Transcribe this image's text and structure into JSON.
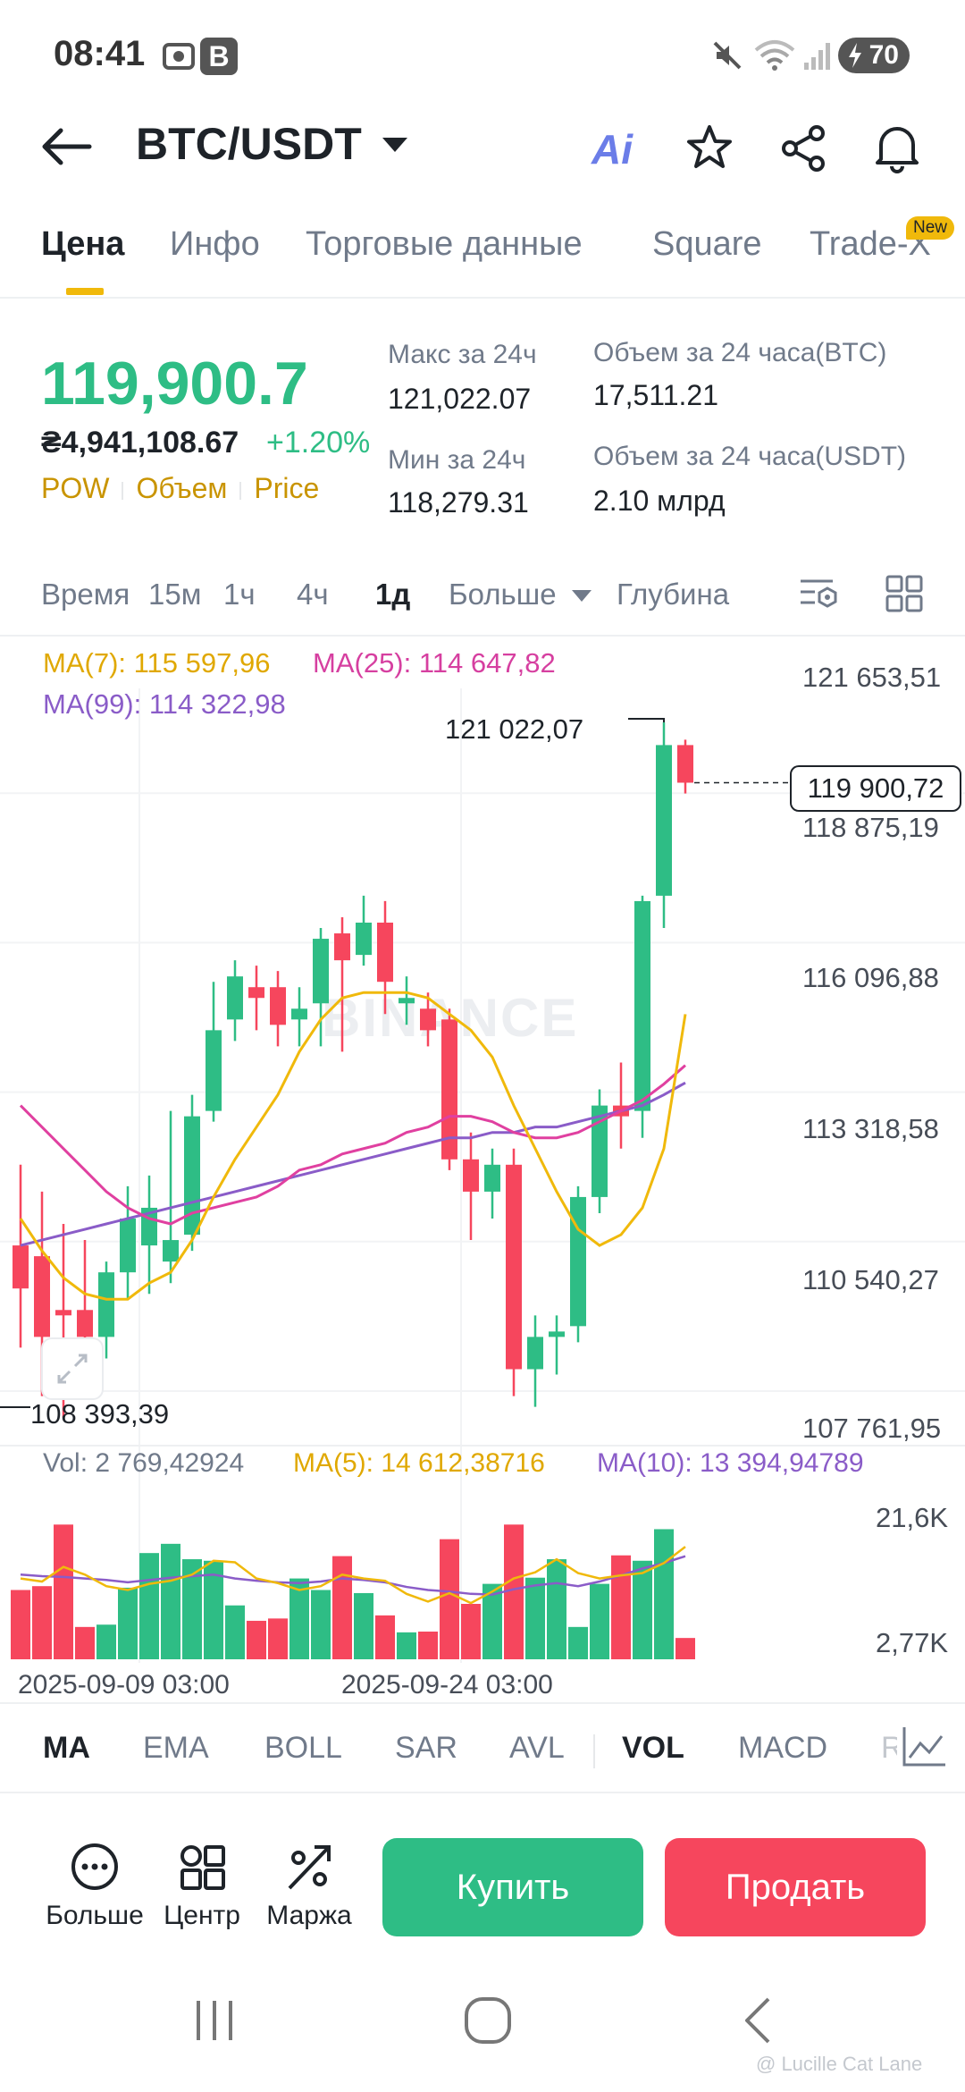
{
  "status_bar": {
    "time": "08:41",
    "badge": "B",
    "battery": "70"
  },
  "header": {
    "pair": "BTC/USDT",
    "ai_label": "Ai"
  },
  "tabs": [
    {
      "label": "Цена",
      "active": true
    },
    {
      "label": "Инфо"
    },
    {
      "label": "Торговые данные"
    },
    {
      "label": "Square"
    },
    {
      "label": "Trade-X",
      "badge": "New"
    }
  ],
  "price": {
    "last": "119,900.7",
    "local": "₴4,941,108.67",
    "change": "+1.20%",
    "tags": [
      "POW",
      "Объем",
      "Price"
    ]
  },
  "stats": {
    "high_label": "Макс за 24ч",
    "high": "121,022.07",
    "low_label": "Мин за 24ч",
    "low": "118,279.31",
    "vol_btc_label": "Объем за 24 часа(BTC)",
    "vol_btc": "17,511.21",
    "vol_usdt_label": "Объем за 24 часа(USDT)",
    "vol_usdt": "2.10 млрд"
  },
  "timeframes": {
    "time_label": "Время",
    "items": [
      "15м",
      "1ч",
      "4ч",
      "1д"
    ],
    "active": "1д",
    "more": "Больше",
    "depth": "Глубина"
  },
  "chart_legend": {
    "ma7": "MA(7): 115 597,96",
    "ma25": "MA(25): 114 647,82",
    "ma99": "MA(99): 114 322,98"
  },
  "price_axis": [
    "121 653,51",
    "118 875,19",
    "116 096,88",
    "113 318,58",
    "110 540,27",
    "107 761,95"
  ],
  "annotations": {
    "high": "121 022,07",
    "low": "108 393,39",
    "current": "119 900,72"
  },
  "watermark": "BINANCE",
  "volume_legend": {
    "vol": "Vol: 2 769,42924",
    "ma5": "MA(5): 14 612,38716",
    "ma10": "MA(10): 13 394,94789"
  },
  "volume_axis": [
    "21,6K",
    "2,77K"
  ],
  "date_axis": [
    "2025-09-09 03:00",
    "2025-09-24 03:00"
  ],
  "indicators": [
    "MA",
    "EMA",
    "BOLL",
    "SAR",
    "AVL",
    "VOL",
    "MACD",
    "R"
  ],
  "bottom_bar": {
    "more": "Больше",
    "center": "Центр",
    "margin": "Маржа",
    "buy": "Купить",
    "sell": "Продать"
  },
  "credit": "@ Lucille Cat Lane",
  "colors": {
    "up": "#2ebd85",
    "down": "#f6465d",
    "accent": "#f0b90b",
    "ma7": "#f0b90b",
    "ma25": "#e040a0",
    "ma99": "#8a5cc8"
  },
  "chart_data": {
    "type": "candlestick",
    "interval": "1д",
    "y_range": [
      107761.95,
      121653.51
    ],
    "candles": [
      {
        "o": 111300,
        "h": 112800,
        "l": 109400,
        "c": 110500
      },
      {
        "o": 111100,
        "h": 112300,
        "l": 108500,
        "c": 109600
      },
      {
        "o": 110100,
        "h": 111700,
        "l": 108100,
        "c": 110000
      },
      {
        "o": 110100,
        "h": 111400,
        "l": 108900,
        "c": 109600
      },
      {
        "o": 109600,
        "h": 111000,
        "l": 109200,
        "c": 110800
      },
      {
        "o": 110800,
        "h": 112400,
        "l": 110300,
        "c": 111800
      },
      {
        "o": 111300,
        "h": 112600,
        "l": 110400,
        "c": 112000
      },
      {
        "o": 111000,
        "h": 113800,
        "l": 110600,
        "c": 111400
      },
      {
        "o": 111500,
        "h": 114100,
        "l": 111200,
        "c": 113700
      },
      {
        "o": 113800,
        "h": 116200,
        "l": 113600,
        "c": 115300
      },
      {
        "o": 115500,
        "h": 116600,
        "l": 115100,
        "c": 116300
      },
      {
        "o": 116100,
        "h": 116500,
        "l": 115300,
        "c": 115900
      },
      {
        "o": 116100,
        "h": 116400,
        "l": 115000,
        "c": 115400
      },
      {
        "o": 115500,
        "h": 116100,
        "l": 115000,
        "c": 115700
      },
      {
        "o": 115800,
        "h": 117200,
        "l": 115000,
        "c": 117000
      },
      {
        "o": 117100,
        "h": 117400,
        "l": 114900,
        "c": 116600
      },
      {
        "o": 116700,
        "h": 117800,
        "l": 116500,
        "c": 117300
      },
      {
        "o": 117300,
        "h": 117700,
        "l": 115600,
        "c": 116200
      },
      {
        "o": 115800,
        "h": 116300,
        "l": 115400,
        "c": 115900
      },
      {
        "o": 115700,
        "h": 116000,
        "l": 115000,
        "c": 115300
      },
      {
        "o": 115500,
        "h": 115700,
        "l": 112700,
        "c": 112900
      },
      {
        "o": 112900,
        "h": 113400,
        "l": 111400,
        "c": 112300
      },
      {
        "o": 112300,
        "h": 113100,
        "l": 111800,
        "c": 112800
      },
      {
        "o": 112800,
        "h": 113100,
        "l": 108500,
        "c": 109000
      },
      {
        "o": 109000,
        "h": 110000,
        "l": 108300,
        "c": 109600
      },
      {
        "o": 109600,
        "h": 110000,
        "l": 108900,
        "c": 109700
      },
      {
        "o": 109800,
        "h": 112400,
        "l": 109500,
        "c": 112200
      },
      {
        "o": 112200,
        "h": 114200,
        "l": 111900,
        "c": 113900
      },
      {
        "o": 113900,
        "h": 114700,
        "l": 113100,
        "c": 113700
      },
      {
        "o": 113800,
        "h": 117800,
        "l": 113300,
        "c": 117700
      },
      {
        "o": 117800,
        "h": 121022.07,
        "l": 117200,
        "c": 120600
      },
      {
        "o": 120600,
        "h": 120700,
        "l": 119700,
        "c": 119900.72
      }
    ],
    "ma7": [
      111800,
      111200,
      110700,
      110400,
      110300,
      110300,
      110600,
      110800,
      111400,
      112200,
      112900,
      113500,
      114100,
      114900,
      115500,
      115900,
      116000,
      116000,
      116000,
      115900,
      115600,
      115300,
      114800,
      113900,
      113100,
      112300,
      111600,
      111300,
      111500,
      112000,
      113100,
      115597.96
    ],
    "ma25": [
      113900,
      113500,
      113100,
      112700,
      112300,
      112000,
      111800,
      111700,
      111900,
      112000,
      112100,
      112200,
      112400,
      112700,
      112800,
      113000,
      113100,
      113200,
      113400,
      113500,
      113700,
      113700,
      113600,
      113400,
      113300,
      113300,
      113400,
      113600,
      113800,
      114000,
      114300,
      114647.82
    ],
    "ma99": [
      111300,
      111400,
      111500,
      111600,
      111700,
      111800,
      111900,
      112000,
      112100,
      112200,
      112300,
      112400,
      112500,
      112600,
      112700,
      112800,
      112900,
      113000,
      113100,
      113200,
      113300,
      113300,
      113400,
      113400,
      113500,
      113500,
      113600,
      113700,
      113800,
      113900,
      114100,
      114322.98
    ],
    "volume": [
      9000,
      9500,
      17500,
      4200,
      4500,
      9300,
      13800,
      15000,
      13000,
      12800,
      7000,
      5000,
      5300,
      10500,
      9000,
      13400,
      8600,
      5700,
      3500,
      3600,
      15600,
      7200,
      9800,
      17500,
      10600,
      13000,
      4200,
      9800,
      13500,
      12800,
      16900,
      2769.42924
    ],
    "vol_ma5": [
      10500,
      10100,
      12000,
      11000,
      9500,
      9000,
      9800,
      10200,
      11000,
      12800,
      12600,
      10500,
      9900,
      9000,
      9500,
      11000,
      10500,
      10200,
      8500,
      7500,
      8600,
      7300,
      8800,
      10500,
      11300,
      13000,
      11200,
      10500,
      10900,
      11200,
      12500,
      14612.38716
    ],
    "vol_ma10": [
      11000,
      10800,
      10700,
      10500,
      10300,
      10000,
      10300,
      10600,
      10800,
      11000,
      10500,
      10200,
      10000,
      9900,
      10100,
      10500,
      10300,
      10000,
      9400,
      9000,
      8800,
      8500,
      8400,
      9100,
      9600,
      9900,
      9500,
      10100,
      10900,
      11800,
      12500,
      13394.94789
    ]
  }
}
